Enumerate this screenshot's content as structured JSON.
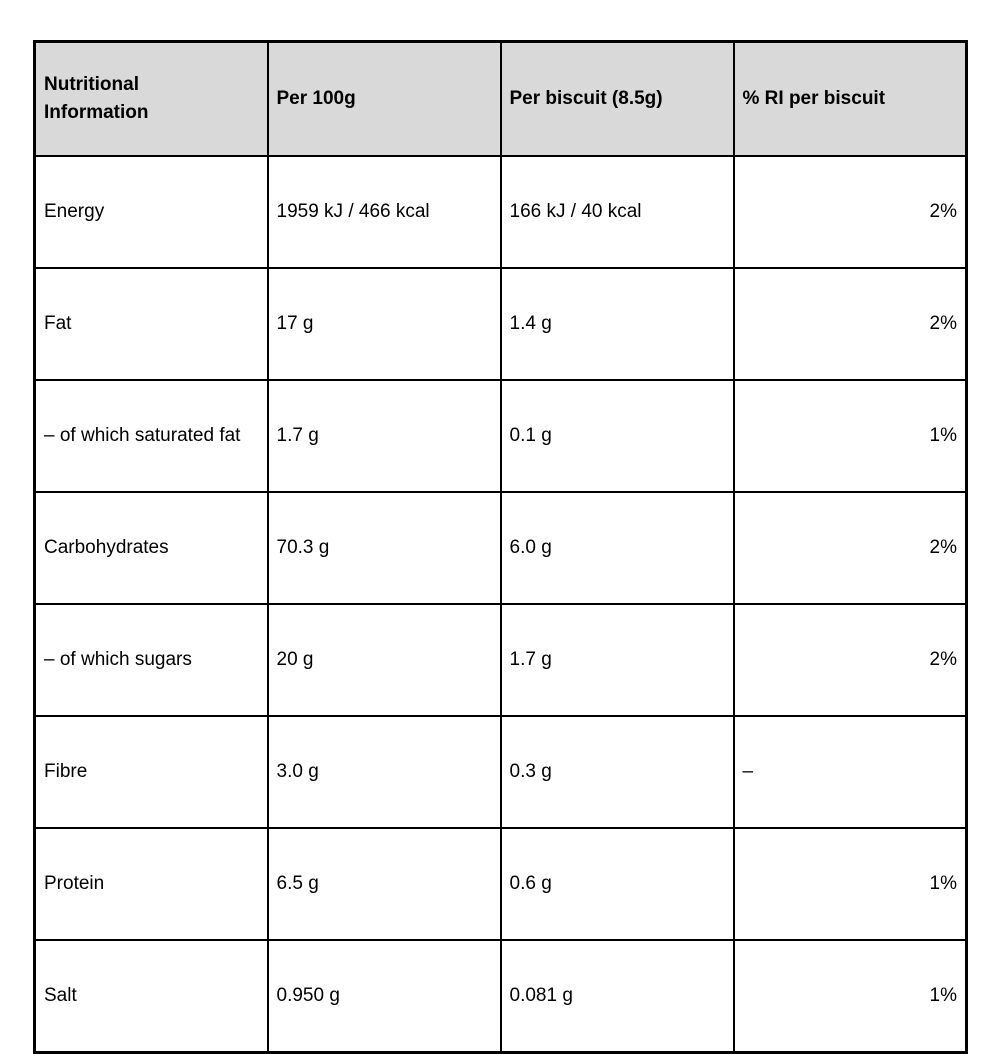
{
  "colors": {
    "header_bg": "#d9d9d9",
    "border": "#000000",
    "text": "#000000",
    "page_bg": "#ffffff"
  },
  "table": {
    "columns": [
      "Nutritional Information",
      "Per 100g",
      "Per biscuit (8.5g)",
      "% RI per biscuit"
    ],
    "rows": [
      {
        "name": "Energy",
        "per_100g": "1959 kJ / 466 kcal",
        "per_biscuit": "166 kJ / 40 kcal",
        "ri_per_biscuit": "2%"
      },
      {
        "name": "Fat",
        "per_100g": "17 g",
        "per_biscuit": "1.4 g",
        "ri_per_biscuit": "2%"
      },
      {
        "name": "– of which saturated fat",
        "per_100g": "1.7 g",
        "per_biscuit": "0.1 g",
        "ri_per_biscuit": "1%"
      },
      {
        "name": "Carbohydrates",
        "per_100g": "70.3 g",
        "per_biscuit": "6.0 g",
        "ri_per_biscuit": "2%"
      },
      {
        "name": "– of which sugars",
        "per_100g": "20 g",
        "per_biscuit": "1.7 g",
        "ri_per_biscuit": "2%"
      },
      {
        "name": "Fibre",
        "per_100g": "3.0 g",
        "per_biscuit": "0.3 g",
        "ri_per_biscuit": "–"
      },
      {
        "name": "Protein",
        "per_100g": "6.5 g",
        "per_biscuit": "0.6 g",
        "ri_per_biscuit": "1%"
      },
      {
        "name": "Salt",
        "per_100g": "0.950 g",
        "per_biscuit": "0.081 g",
        "ri_per_biscuit": "1%"
      }
    ]
  }
}
